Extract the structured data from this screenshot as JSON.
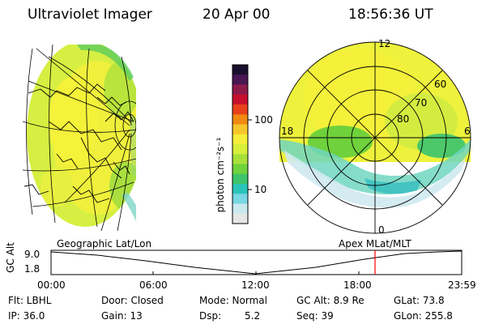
{
  "header": {
    "instrument": "Ultraviolet Imager",
    "date": "20 Apr 00",
    "time": "18:56:36 UT"
  },
  "colorbar": {
    "label": "photon cm⁻²s⁻¹",
    "ticks": [
      "100",
      "10"
    ],
    "colors": [
      "#1a0f2e",
      "#4b1553",
      "#8e1a4a",
      "#c8102e",
      "#e8401a",
      "#f08a12",
      "#f7c62c",
      "#f5ee3a",
      "#d7ee3a",
      "#a7e03a",
      "#6fd13c",
      "#3dc46a",
      "#2bc4b9",
      "#79d6e3",
      "#c9e9ef",
      "#e6e6e6"
    ]
  },
  "polar_plot": {
    "labels": [
      "12",
      "60",
      "70",
      "80",
      "18",
      "6",
      "0"
    ]
  },
  "captions": {
    "left": "Geographic Lat/Lon",
    "right": "Apex MLat/MLT"
  },
  "timeline": {
    "ylabel": "GC Alt",
    "yticks": [
      "9.0",
      "1.8"
    ],
    "xticks": [
      "00:00",
      "06:00",
      "12:00",
      "18:00",
      "23:59"
    ],
    "colors": {
      "marker": "#ff0000"
    }
  },
  "info": {
    "flt": "Flt: LBHL",
    "ip": "IP: 36.0",
    "door": "Door: Closed",
    "gain": "Gain: 13",
    "mode": "Mode: Normal",
    "dsp_label": "Dsp:",
    "dsp_value": "5.2",
    "gcalt": "GC Alt: 8.9 Re",
    "seq": "Seq: 39",
    "glat": "GLat:  73.8",
    "glon": "GLon: 255.8"
  }
}
